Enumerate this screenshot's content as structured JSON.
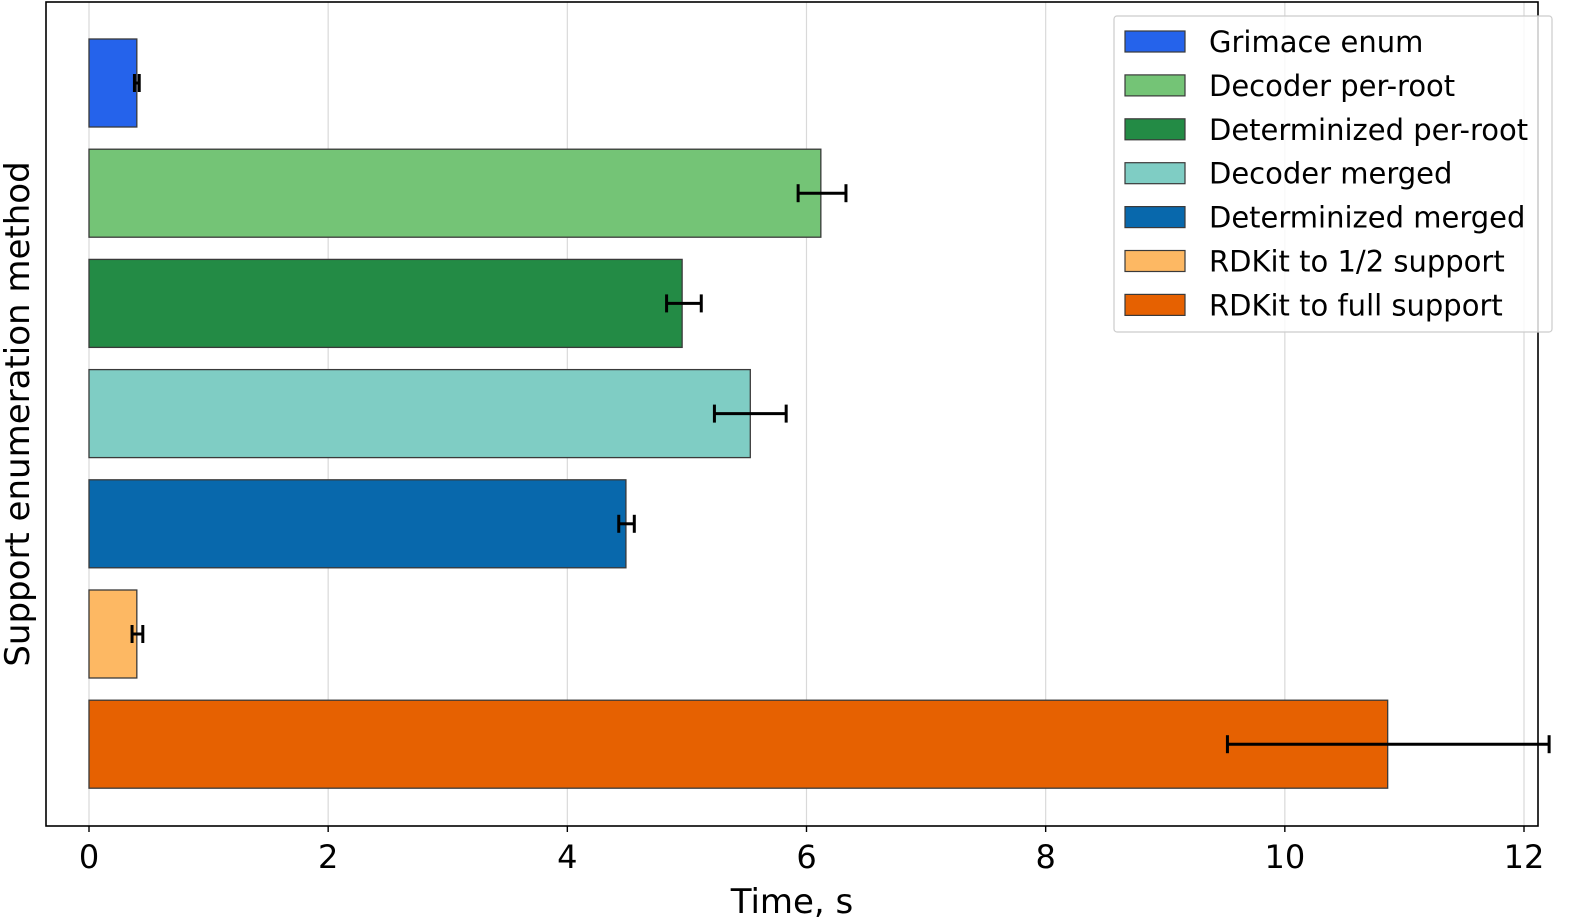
{
  "chart_data": {
    "type": "bar",
    "orientation": "horizontal",
    "xlabel": "Time, s",
    "ylabel": "Support enumeration method",
    "xlim": [
      -0.36,
      12.23
    ],
    "xticks": [
      0,
      2,
      4,
      6,
      8,
      10,
      12
    ],
    "grid": "vertical",
    "legend_position": "top-right",
    "series": [
      {
        "name": "Grimace enum",
        "value": 0.4,
        "error": [
          0.38,
          0.42
        ],
        "color": "#2563eb"
      },
      {
        "name": "Decoder per-root",
        "value": 6.12,
        "error": [
          5.93,
          6.33
        ],
        "color": "#74c476"
      },
      {
        "name": "Determinized per-root",
        "value": 4.96,
        "error": [
          4.83,
          5.12
        ],
        "color": "#238b45"
      },
      {
        "name": "Decoder merged",
        "value": 5.53,
        "error": [
          5.23,
          5.83
        ],
        "color": "#7fcdc4"
      },
      {
        "name": "Determinized merged",
        "value": 4.49,
        "error": [
          4.43,
          4.56
        ],
        "color": "#0868ac"
      },
      {
        "name": "RDKit to 1/2 support",
        "value": 0.4,
        "error": [
          0.36,
          0.45
        ],
        "color": "#fdb863"
      },
      {
        "name": "RDKit to full support",
        "value": 10.86,
        "error": [
          9.52,
          12.21
        ],
        "color": "#e66101"
      }
    ]
  }
}
